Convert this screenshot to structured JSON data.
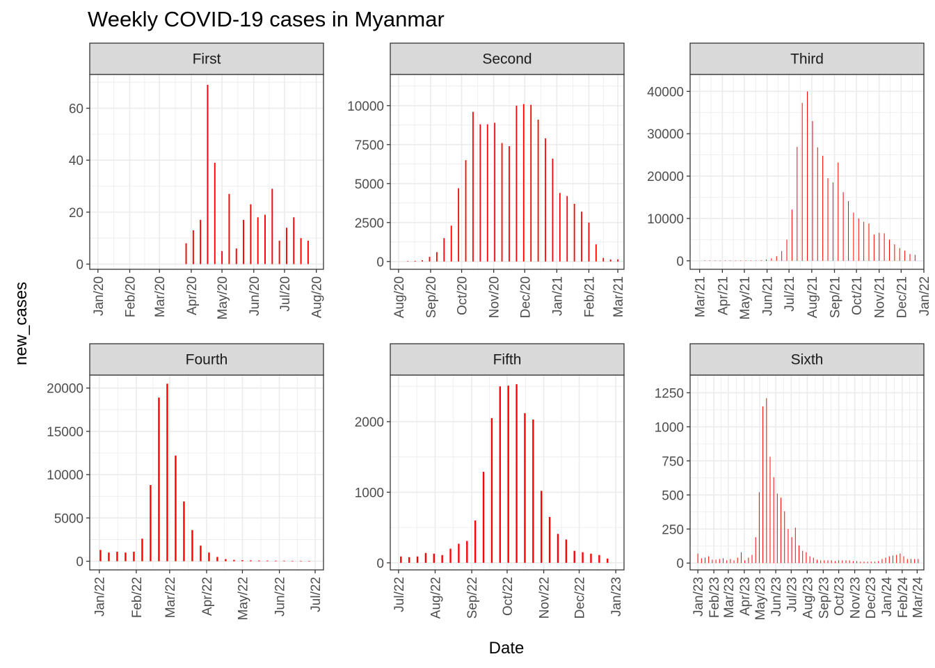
{
  "chart_data": {
    "type": "bar",
    "title": "Weekly COVID-19 cases in Myanmar",
    "xlabel": "Date",
    "ylabel": "new_cases",
    "bar_color": "#ff0000",
    "strip_fill": "#d9d9d9",
    "grid_color": "#ebebeb",
    "panel_border_color": "#333333",
    "background": "#ffffff",
    "grid": true,
    "legend": "none",
    "facets": [
      {
        "name": "First",
        "x_domain": [
          "2019-12-24",
          "2020-08-08"
        ],
        "ylim": [
          -2,
          73
        ],
        "y_ticks": [
          0,
          20,
          40,
          60
        ],
        "y_tick_labels": [
          "0",
          "20",
          "40",
          "60"
        ],
        "x_ticks": [
          "2020-01-01",
          "2020-02-01",
          "2020-03-01",
          "2020-04-01",
          "2020-05-01",
          "2020-06-01",
          "2020-07-01",
          "2020-08-01"
        ],
        "x_tick_labels": [
          "Jan/20",
          "Feb/20",
          "Mar/20",
          "Apr/20",
          "May/20",
          "Jun/20",
          "Jul/20",
          "Aug/20"
        ],
        "bar_width_days": 1.3,
        "x": [
          "2020-03-27",
          "2020-04-03",
          "2020-04-10",
          "2020-04-17",
          "2020-04-24",
          "2020-05-01",
          "2020-05-08",
          "2020-05-15",
          "2020-05-22",
          "2020-05-29",
          "2020-06-05",
          "2020-06-12",
          "2020-06-19",
          "2020-06-26",
          "2020-07-03",
          "2020-07-10",
          "2020-07-17",
          "2020-07-24"
        ],
        "values": [
          8,
          13,
          17,
          69,
          39,
          5,
          27,
          6,
          17,
          23,
          18,
          19,
          29,
          9,
          14,
          18,
          10,
          9
        ]
      },
      {
        "name": "Second",
        "x_domain": [
          "2020-07-24",
          "2021-03-07"
        ],
        "ylim": [
          -500,
          12000
        ],
        "y_ticks": [
          0,
          2500,
          5000,
          7500,
          10000
        ],
        "y_tick_labels": [
          "0",
          "2500",
          "5000",
          "7500",
          "10000"
        ],
        "x_ticks": [
          "2020-08-01",
          "2020-09-01",
          "2020-10-01",
          "2020-11-01",
          "2020-12-01",
          "2021-01-01",
          "2021-02-01",
          "2021-03-01"
        ],
        "x_tick_labels": [
          "Aug/20",
          "Sep/20",
          "Oct/20",
          "Nov/20",
          "Dec/20",
          "Jan/21",
          "Feb/21",
          "Mar/21"
        ],
        "bar_width_days": 1.2,
        "x": [
          "2020-08-10",
          "2020-08-17",
          "2020-08-24",
          "2020-08-31",
          "2020-09-07",
          "2020-09-14",
          "2020-09-21",
          "2020-09-28",
          "2020-10-05",
          "2020-10-12",
          "2020-10-19",
          "2020-10-26",
          "2020-11-02",
          "2020-11-09",
          "2020-11-16",
          "2020-11-23",
          "2020-11-30",
          "2020-12-07",
          "2020-12-14",
          "2020-12-21",
          "2020-12-28",
          "2021-01-04",
          "2021-01-11",
          "2021-01-18",
          "2021-01-25",
          "2021-02-01",
          "2021-02-08",
          "2021-02-15",
          "2021-02-22",
          "2021-03-01"
        ],
        "values": [
          20,
          40,
          80,
          300,
          600,
          1500,
          2300,
          4700,
          6500,
          9600,
          8800,
          8800,
          8900,
          7600,
          7400,
          10000,
          10100,
          10050,
          9100,
          7900,
          6600,
          4400,
          4200,
          3700,
          3200,
          2500,
          1100,
          230,
          130,
          130
        ]
      },
      {
        "name": "Third",
        "x_domain": [
          "2021-02-16",
          "2022-01-01"
        ],
        "ylim": [
          -2000,
          44000
        ],
        "y_ticks": [
          0,
          10000,
          20000,
          30000,
          40000
        ],
        "y_tick_labels": [
          "0",
          "10000",
          "20000",
          "30000",
          "40000"
        ],
        "x_ticks": [
          "2021-03-01",
          "2021-04-01",
          "2021-05-01",
          "2021-06-01",
          "2021-07-01",
          "2021-08-01",
          "2021-09-01",
          "2021-10-01",
          "2021-11-01",
          "2021-12-01",
          "2022-01-01"
        ],
        "x_tick_labels": [
          "Mar/21",
          "Apr/21",
          "May/21",
          "Jun/21",
          "Jul/21",
          "Aug/21",
          "Sep/21",
          "Oct/21",
          "Nov/21",
          "Dec/21",
          "Jan/22"
        ],
        "bar_width_days": 0.8,
        "x": [
          "2021-03-08",
          "2021-03-15",
          "2021-03-22",
          "2021-03-29",
          "2021-04-05",
          "2021-04-12",
          "2021-04-19",
          "2021-04-26",
          "2021-05-03",
          "2021-05-10",
          "2021-05-17",
          "2021-05-24",
          "2021-05-31",
          "2021-06-07",
          "2021-06-14",
          "2021-06-21",
          "2021-06-28",
          "2021-07-05",
          "2021-07-12",
          "2021-07-19",
          "2021-07-26",
          "2021-08-02",
          "2021-08-09",
          "2021-08-16",
          "2021-08-23",
          "2021-08-30",
          "2021-09-06",
          "2021-09-13",
          "2021-09-20",
          "2021-09-27",
          "2021-10-04",
          "2021-10-11",
          "2021-10-18",
          "2021-10-25",
          "2021-11-01",
          "2021-11-08",
          "2021-11-15",
          "2021-11-22",
          "2021-11-29",
          "2021-12-06",
          "2021-12-13",
          "2021-12-20"
        ],
        "values": [
          100,
          80,
          60,
          50,
          70,
          60,
          50,
          60,
          70,
          80,
          100,
          150,
          300,
          600,
          1100,
          2300,
          5000,
          12100,
          26900,
          37300,
          40000,
          33000,
          26800,
          24800,
          19500,
          18500,
          23200,
          16200,
          14100,
          11400,
          10000,
          9200,
          8800,
          6200,
          6600,
          6500,
          5000,
          3900,
          3000,
          2400,
          1600,
          1400
        ]
      },
      {
        "name": "Fourth",
        "x_domain": [
          "2021-12-24",
          "2022-07-08"
        ],
        "ylim": [
          -1000,
          21500
        ],
        "y_ticks": [
          0,
          5000,
          10000,
          15000,
          20000
        ],
        "y_tick_labels": [
          "0",
          "5000",
          "10000",
          "15000",
          "20000"
        ],
        "x_ticks": [
          "2022-01-01",
          "2022-02-01",
          "2022-03-01",
          "2022-04-01",
          "2022-05-01",
          "2022-06-01",
          "2022-07-01"
        ],
        "x_tick_labels": [
          "Jan/22",
          "Feb/22",
          "Mar/22",
          "Apr/22",
          "May/22",
          "Jun/22",
          "Jul/22"
        ],
        "bar_width_days": 1.4,
        "x": [
          "2022-01-02",
          "2022-01-09",
          "2022-01-16",
          "2022-01-23",
          "2022-01-30",
          "2022-02-06",
          "2022-02-13",
          "2022-02-20",
          "2022-02-27",
          "2022-03-06",
          "2022-03-13",
          "2022-03-20",
          "2022-03-27",
          "2022-04-03",
          "2022-04-10",
          "2022-04-17",
          "2022-04-24",
          "2022-05-01",
          "2022-05-08",
          "2022-05-15",
          "2022-05-22",
          "2022-05-29",
          "2022-06-05",
          "2022-06-12",
          "2022-06-19",
          "2022-06-26"
        ],
        "values": [
          1300,
          1000,
          1100,
          1000,
          1100,
          2600,
          8800,
          18900,
          20500,
          12200,
          6900,
          3600,
          1800,
          1000,
          500,
          250,
          150,
          120,
          100,
          80,
          70,
          60,
          60,
          50,
          50,
          40
        ]
      },
      {
        "name": "Fifth",
        "x_domain": [
          "2022-06-24",
          "2023-01-08"
        ],
        "ylim": [
          -100,
          2660
        ],
        "y_ticks": [
          0,
          1000,
          2000
        ],
        "y_tick_labels": [
          "0",
          "1000",
          "2000"
        ],
        "x_ticks": [
          "2022-07-01",
          "2022-08-01",
          "2022-09-01",
          "2022-10-01",
          "2022-11-01",
          "2022-12-01",
          "2023-01-01"
        ],
        "x_tick_labels": [
          "Jul/22",
          "Aug/22",
          "Sep/22",
          "Oct/22",
          "Nov/22",
          "Dec/22",
          "Jan/23"
        ],
        "bar_width_days": 1.4,
        "x": [
          "2022-07-03",
          "2022-07-10",
          "2022-07-17",
          "2022-07-24",
          "2022-07-31",
          "2022-08-07",
          "2022-08-14",
          "2022-08-21",
          "2022-08-28",
          "2022-09-04",
          "2022-09-11",
          "2022-09-18",
          "2022-09-25",
          "2022-10-02",
          "2022-10-09",
          "2022-10-16",
          "2022-10-23",
          "2022-10-30",
          "2022-11-06",
          "2022-11-13",
          "2022-11-20",
          "2022-11-27",
          "2022-12-04",
          "2022-12-11",
          "2022-12-18",
          "2022-12-25"
        ],
        "values": [
          90,
          80,
          90,
          140,
          130,
          110,
          200,
          270,
          310,
          600,
          1290,
          2050,
          2500,
          2510,
          2530,
          2120,
          2030,
          1020,
          650,
          410,
          330,
          170,
          150,
          130,
          110,
          60
        ]
      },
      {
        "name": "Sixth",
        "x_domain": [
          "2022-12-17",
          "2024-03-14"
        ],
        "ylim": [
          -50,
          1380
        ],
        "y_ticks": [
          0,
          250,
          500,
          750,
          1000,
          1250
        ],
        "y_tick_labels": [
          "0",
          "250",
          "500",
          "750",
          "1000",
          "1250"
        ],
        "x_ticks": [
          "2023-01-01",
          "2023-02-01",
          "2023-03-01",
          "2023-04-01",
          "2023-05-01",
          "2023-06-01",
          "2023-07-01",
          "2023-08-01",
          "2023-09-01",
          "2023-10-01",
          "2023-11-01",
          "2023-12-01",
          "2024-01-01",
          "2024-02-01",
          "2024-03-01"
        ],
        "x_tick_labels": [
          "Jan/23",
          "Feb/23",
          "Mar/23",
          "Apr/23",
          "May/23",
          "Jun/23",
          "Jul/23",
          "Aug/23",
          "Sep/23",
          "Oct/23",
          "Nov/23",
          "Dec/23",
          "Jan/24",
          "Feb/24",
          "Mar/24"
        ],
        "bar_width_days": 0.9,
        "x": [
          "2023-01-01",
          "2023-01-08",
          "2023-01-15",
          "2023-01-22",
          "2023-01-29",
          "2023-02-05",
          "2023-02-12",
          "2023-02-19",
          "2023-02-26",
          "2023-03-05",
          "2023-03-12",
          "2023-03-19",
          "2023-03-26",
          "2023-04-02",
          "2023-04-09",
          "2023-04-16",
          "2023-04-23",
          "2023-04-30",
          "2023-05-07",
          "2023-05-14",
          "2023-05-21",
          "2023-05-28",
          "2023-06-04",
          "2023-06-11",
          "2023-06-18",
          "2023-06-25",
          "2023-07-02",
          "2023-07-09",
          "2023-07-16",
          "2023-07-23",
          "2023-07-30",
          "2023-08-06",
          "2023-08-13",
          "2023-08-20",
          "2023-08-27",
          "2023-09-03",
          "2023-09-10",
          "2023-09-17",
          "2023-09-24",
          "2023-10-01",
          "2023-10-08",
          "2023-10-15",
          "2023-10-22",
          "2023-10-29",
          "2023-11-05",
          "2023-11-12",
          "2023-11-19",
          "2023-11-26",
          "2023-12-03",
          "2023-12-10",
          "2023-12-17",
          "2023-12-24",
          "2023-12-31",
          "2024-01-07",
          "2024-01-14",
          "2024-01-21",
          "2024-01-28",
          "2024-02-04",
          "2024-02-11",
          "2024-02-18",
          "2024-02-25",
          "2024-03-03"
        ],
        "values": [
          70,
          35,
          40,
          50,
          25,
          25,
          30,
          35,
          20,
          30,
          20,
          40,
          80,
          20,
          40,
          60,
          190,
          520,
          1150,
          1210,
          780,
          630,
          510,
          480,
          380,
          250,
          190,
          260,
          130,
          90,
          80,
          50,
          40,
          25,
          20,
          20,
          20,
          20,
          15,
          20,
          20,
          20,
          20,
          15,
          15,
          10,
          10,
          10,
          10,
          10,
          15,
          30,
          40,
          50,
          55,
          60,
          70,
          50,
          30,
          30,
          30,
          30
        ]
      }
    ]
  }
}
